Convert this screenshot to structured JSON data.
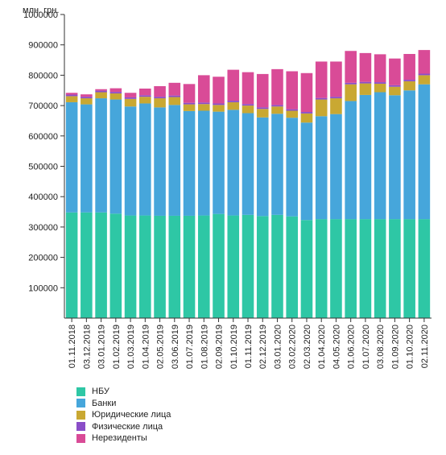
{
  "chart_data": {
    "type": "bar",
    "stacked": true,
    "unit_label": "млн. грн.",
    "yticks": [
      "100000",
      "200000",
      "300000",
      "400000",
      "500000",
      "600000",
      "700000",
      "800000",
      "900000",
      "1000000"
    ],
    "ylim": [
      0,
      1000000
    ],
    "grid": false,
    "legend_position": "bottom-left",
    "categories": [
      "01.11.2018",
      "03.12.2018",
      "03.01.2019",
      "01.02.2019",
      "01.03.2019",
      "01.04.2019",
      "02.05.2019",
      "03.06.2019",
      "01.07.2019",
      "01.08.2019",
      "02.09.2019",
      "01.10.2019",
      "01.11.2019",
      "02.12.2019",
      "03.01.2020",
      "03.02.2020",
      "02.03.2020",
      "01.04.2020",
      "04.05.2020",
      "01.06.2020",
      "01.07.2020",
      "03.08.2020",
      "01.09.2020",
      "01.10.2020",
      "02.11.2020"
    ],
    "series": [
      {
        "name": "НБУ",
        "color": "#2ec7a5",
        "values": [
          348000,
          348000,
          348000,
          344000,
          338000,
          338000,
          337000,
          337000,
          337000,
          338000,
          343000,
          338000,
          340000,
          336000,
          340000,
          335000,
          323000,
          326000,
          326000,
          326000,
          326000,
          326000,
          326000,
          326000,
          326000
        ]
      },
      {
        "name": "Банки",
        "color": "#46a6db",
        "values": [
          363000,
          356000,
          376000,
          376000,
          359000,
          369000,
          357000,
          365000,
          345000,
          345000,
          337000,
          348000,
          335000,
          325000,
          333000,
          325000,
          321000,
          339000,
          346000,
          389000,
          409000,
          418000,
          408000,
          424000,
          444000
        ]
      },
      {
        "name": "Юридические лица",
        "color": "#c9a832",
        "values": [
          20000,
          20000,
          20000,
          20000,
          25000,
          22000,
          30000,
          26000,
          22000,
          22000,
          22000,
          25000,
          25000,
          28000,
          24000,
          23000,
          30000,
          55000,
          52000,
          55000,
          38000,
          28000,
          28000,
          30000,
          30000
        ]
      },
      {
        "name": "Физические лица",
        "color": "#8a4ec8",
        "values": [
          5000,
          5000,
          5000,
          5000,
          5000,
          5000,
          5000,
          5000,
          5000,
          5000,
          5000,
          5000,
          5000,
          5000,
          5000,
          5000,
          5000,
          5000,
          5000,
          5000,
          5000,
          5000,
          5000,
          5000,
          5000
        ]
      },
      {
        "name": "Нерезиденты",
        "color": "#d94b97",
        "values": [
          6000,
          8000,
          5000,
          12000,
          15000,
          22000,
          35000,
          42000,
          62000,
          90000,
          88000,
          102000,
          105000,
          110000,
          118000,
          125000,
          128000,
          120000,
          116000,
          105000,
          95000,
          92000,
          88000,
          85000,
          78000
        ]
      }
    ]
  }
}
